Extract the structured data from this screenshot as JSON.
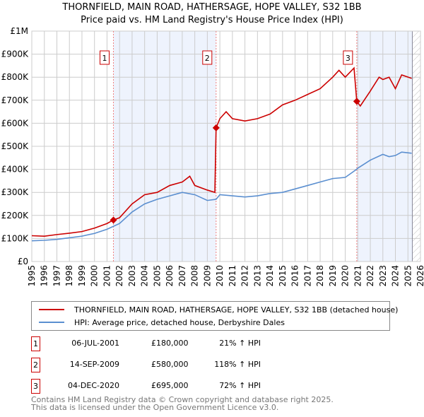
{
  "title": {
    "line1": "THORNFIELD, MAIN ROAD, HATHERSAGE, HOPE VALLEY, S32 1BB",
    "line2": "Price paid vs. HM Land Registry's House Price Index (HPI)"
  },
  "chart_data": {
    "type": "line",
    "title": "THORNFIELD, MAIN ROAD, HATHERSAGE, HOPE VALLEY, S32 1BB - Price paid vs. HM Land Registry's House Price Index (HPI)",
    "xlim": [
      1995,
      2026
    ],
    "ylim": [
      0,
      1000000
    ],
    "xticks": [
      "1995",
      "1996",
      "1997",
      "1998",
      "1999",
      "2000",
      "2001",
      "2002",
      "2003",
      "2004",
      "2005",
      "2006",
      "2007",
      "2008",
      "2009",
      "2010",
      "2011",
      "2012",
      "2013",
      "2014",
      "2015",
      "2016",
      "2017",
      "2018",
      "2019",
      "2020",
      "2021",
      "2022",
      "2023",
      "2024",
      "2025",
      "2026"
    ],
    "yticks": [
      {
        "v": 0,
        "label": "£0"
      },
      {
        "v": 100000,
        "label": "£100K"
      },
      {
        "v": 200000,
        "label": "£200K"
      },
      {
        "v": 300000,
        "label": "£300K"
      },
      {
        "v": 400000,
        "label": "£400K"
      },
      {
        "v": 500000,
        "label": "£500K"
      },
      {
        "v": 600000,
        "label": "£600K"
      },
      {
        "v": 700000,
        "label": "£700K"
      },
      {
        "v": 800000,
        "label": "£800K"
      },
      {
        "v": 900000,
        "label": "£900K"
      },
      {
        "v": 1000000,
        "label": "£1M"
      }
    ],
    "grid": true,
    "shaded_ranges": [
      [
        2001.5,
        2009.7
      ],
      [
        2020.92,
        2025.35
      ]
    ],
    "forecast_hatch_from": 2025.35,
    "series": [
      {
        "name": "THORNFIELD, MAIN ROAD, HATHERSAGE, HOPE VALLEY, S32 1BB (detached house)",
        "color": "#cc0000",
        "x": [
          1995,
          1996,
          1997,
          1998,
          1999,
          2000,
          2001,
          2001.5,
          2002,
          2003,
          2004,
          2005,
          2006,
          2007,
          2007.6,
          2008,
          2009,
          2009.6,
          2009.7,
          2010,
          2010.5,
          2011,
          2012,
          2013,
          2014,
          2015,
          2016,
          2017,
          2018,
          2019,
          2019.5,
          2020,
          2020.7,
          2020.92,
          2021.2,
          2022,
          2022.7,
          2023,
          2023.5,
          2024,
          2024.5,
          2025.3
        ],
        "y": [
          112000,
          110000,
          117000,
          123000,
          130000,
          145000,
          165000,
          180000,
          190000,
          250000,
          290000,
          300000,
          330000,
          345000,
          370000,
          330000,
          310000,
          300000,
          580000,
          620000,
          650000,
          620000,
          610000,
          620000,
          640000,
          680000,
          700000,
          725000,
          750000,
          800000,
          830000,
          800000,
          840000,
          695000,
          675000,
          740000,
          800000,
          790000,
          800000,
          750000,
          810000,
          795000
        ]
      },
      {
        "name": "HPI: Average price, detached house, Derbyshire Dales",
        "color": "#5b8fd0",
        "x": [
          1995,
          1996,
          1997,
          1998,
          1999,
          2000,
          2001,
          2002,
          2003,
          2004,
          2005,
          2006,
          2007,
          2008,
          2009,
          2009.7,
          2010,
          2011,
          2012,
          2013,
          2014,
          2015,
          2016,
          2017,
          2018,
          2019,
          2020,
          2020.9,
          2021,
          2022,
          2023,
          2023.5,
          2024,
          2024.5,
          2025.3
        ],
        "y": [
          90000,
          92000,
          96000,
          103000,
          110000,
          122000,
          140000,
          165000,
          215000,
          250000,
          270000,
          285000,
          300000,
          290000,
          265000,
          270000,
          290000,
          285000,
          280000,
          285000,
          295000,
          300000,
          315000,
          330000,
          345000,
          360000,
          365000,
          400000,
          405000,
          440000,
          465000,
          455000,
          460000,
          475000,
          470000
        ]
      }
    ],
    "sales": [
      {
        "n": "1",
        "x": 2001.51,
        "price": 180000,
        "date": "06-JUL-2001",
        "price_label": "£180,000",
        "hpi": "21% ↑ HPI"
      },
      {
        "n": "2",
        "x": 2009.7,
        "price": 580000,
        "date": "14-SEP-2009",
        "price_label": "£580,000",
        "hpi": "118% ↑ HPI"
      },
      {
        "n": "3",
        "x": 2020.92,
        "price": 695000,
        "date": "04-DEC-2020",
        "price_label": "£695,000",
        "hpi": "72% ↑ HPI"
      }
    ]
  },
  "legend": {
    "red": "THORNFIELD, MAIN ROAD, HATHERSAGE, HOPE VALLEY, S32 1BB (detached house)",
    "blue": "HPI: Average price, detached house, Derbyshire Dales"
  },
  "footer": {
    "line1": "Contains HM Land Registry data © Crown copyright and database right 2025.",
    "line2": "This data is licensed under the Open Government Licence v3.0."
  }
}
